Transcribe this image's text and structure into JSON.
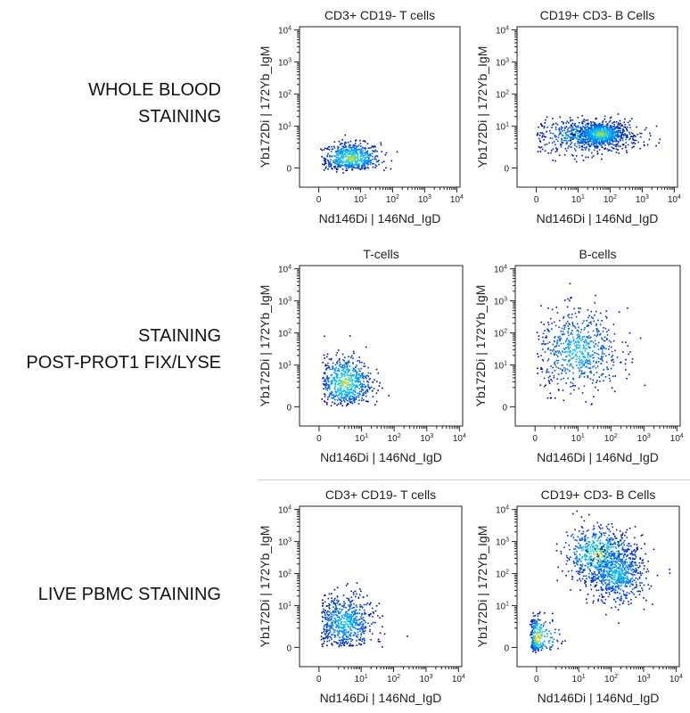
{
  "row_labels": [
    {
      "lines": [
        "WHOLE BLOOD",
        "STAINING"
      ]
    },
    {
      "lines": [
        "STAINING",
        "POST-PROT1 FIX/LYSE"
      ]
    },
    {
      "lines": [
        "LIVE PBMC STAINING"
      ]
    }
  ],
  "colors": {
    "density_low": "#00008b",
    "density_mid": "#00b4ff",
    "density_high": "#ffd000",
    "density_peak": "#e03000",
    "axis": "#222222",
    "divider": "#cfcfcf"
  },
  "chart_data": [
    {
      "type": "scatter",
      "style": "density",
      "title": "CD3+ CD19- T cells",
      "xlabel": "Nd146Di | 146Nd_IgD",
      "ylabel": "Yb172Di | 172Yb_IgM",
      "x_scale": "biexponential",
      "y_scale": "biexponential",
      "xlim": [
        -1,
        10000
      ],
      "ylim": [
        -1,
        10000
      ],
      "xticks": [
        "0",
        "10",
        "10",
        "10",
        "10"
      ],
      "xtick_exponents": [
        "",
        "1",
        "2",
        "3",
        "4"
      ],
      "yticks": [
        "0",
        "10",
        "10",
        "10",
        "10"
      ],
      "ytick_exponents": [
        "",
        "1",
        "2",
        "3",
        "4"
      ],
      "clusters": [
        {
          "x_center": 5,
          "x_spread": 1.0,
          "y_center": 2,
          "y_spread": 0.35,
          "density": "high"
        }
      ],
      "grid": false
    },
    {
      "type": "scatter",
      "style": "density",
      "title": "CD19+ CD3- B Cells",
      "xlabel": "Nd146Di | 146Nd_IgD",
      "ylabel": "Yb172Di | 172Yb_IgM",
      "x_scale": "biexponential",
      "y_scale": "biexponential",
      "xlim": [
        -1,
        10000
      ],
      "ylim": [
        -1,
        10000
      ],
      "xticks": [
        "0",
        "10",
        "10",
        "10",
        "10"
      ],
      "xtick_exponents": [
        "",
        "1",
        "2",
        "3",
        "4"
      ],
      "yticks": [
        "0",
        "10",
        "10",
        "10",
        "10"
      ],
      "ytick_exponents": [
        "",
        "1",
        "2",
        "3",
        "4"
      ],
      "clusters": [
        {
          "x_center": 20,
          "x_spread": 1.8,
          "y_center": 5,
          "y_spread": 0.6,
          "density": "mid"
        },
        {
          "x_center": 50,
          "x_spread": 0.8,
          "y_center": 6,
          "y_spread": 0.4,
          "density": "high"
        }
      ],
      "grid": false
    },
    {
      "type": "scatter",
      "style": "density",
      "title": "T-cells",
      "xlabel": "Nd146Di | 146Nd_IgD",
      "ylabel": "Yb172Di | 172Yb_IgM",
      "x_scale": "biexponential",
      "y_scale": "biexponential",
      "xlim": [
        -1,
        10000
      ],
      "ylim": [
        -1,
        10000
      ],
      "xticks": [
        "0",
        "10",
        "10",
        "10",
        "10"
      ],
      "xtick_exponents": [
        "",
        "1",
        "2",
        "3",
        "4"
      ],
      "yticks": [
        "0",
        "10",
        "10",
        "10",
        "10"
      ],
      "ytick_exponents": [
        "",
        "1",
        "2",
        "3",
        "4"
      ],
      "clusters": [
        {
          "x_center": 3,
          "x_spread": 0.9,
          "y_center": 3,
          "y_spread": 0.9,
          "density": "high"
        }
      ],
      "grid": false
    },
    {
      "type": "scatter",
      "style": "density",
      "title": "B-cells",
      "xlabel": "Nd146Di | 146Nd_IgD",
      "ylabel": "Yb172Di | 172Yb_IgM",
      "x_scale": "biexponential",
      "y_scale": "biexponential",
      "xlim": [
        -1,
        10000
      ],
      "ylim": [
        -1,
        10000
      ],
      "xticks": [
        "0",
        "10",
        "10",
        "10",
        "10"
      ],
      "xtick_exponents": [
        "",
        "1",
        "2",
        "3",
        "4"
      ],
      "yticks": [
        "0",
        "10",
        "10",
        "10",
        "10"
      ],
      "ytick_exponents": [
        "",
        "1",
        "2",
        "3",
        "4"
      ],
      "clusters": [
        {
          "x_center": 10,
          "x_spread": 1.4,
          "y_center": 30,
          "y_spread": 1.4,
          "density": "mid"
        }
      ],
      "grid": false
    },
    {
      "type": "scatter",
      "style": "density",
      "title": "CD3+ CD19- T cells",
      "xlabel": "Nd146Di | 146Nd_IgD",
      "ylabel": "Yb172Di | 172Yb_IgM",
      "x_scale": "biexponential",
      "y_scale": "biexponential",
      "xlim": [
        -1,
        10000
      ],
      "ylim": [
        -1,
        10000
      ],
      "xticks": [
        "0",
        "10",
        "10",
        "10",
        "10"
      ],
      "xtick_exponents": [
        "",
        "1",
        "2",
        "3",
        "4"
      ],
      "yticks": [
        "0",
        "10",
        "10",
        "10",
        "10"
      ],
      "ytick_exponents": [
        "",
        "1",
        "2",
        "3",
        "4"
      ],
      "clusters": [
        {
          "x_center": 3,
          "x_spread": 1.0,
          "y_center": 3,
          "y_spread": 1.0,
          "density": "mid"
        }
      ],
      "grid": false
    },
    {
      "type": "scatter",
      "style": "density",
      "title": "CD19+ CD3- B Cells",
      "xlabel": "Nd146Di | 146Nd_IgD",
      "ylabel": "Yb172Di | 172Yb_IgM",
      "x_scale": "biexponential",
      "y_scale": "biexponential",
      "xlim": [
        -1,
        10000
      ],
      "ylim": [
        -1,
        10000
      ],
      "xticks": [
        "0",
        "10",
        "10",
        "10",
        "10"
      ],
      "xtick_exponents": [
        "",
        "1",
        "2",
        "3",
        "4"
      ],
      "yticks": [
        "0",
        "10",
        "10",
        "10",
        "10"
      ],
      "ytick_exponents": [
        "",
        "1",
        "2",
        "3",
        "4"
      ],
      "clusters": [
        {
          "x_center": 40,
          "x_spread": 1.2,
          "y_center": 400,
          "y_spread": 1.0,
          "density": "high"
        },
        {
          "x_center": 150,
          "x_spread": 1.0,
          "y_center": 100,
          "y_spread": 1.0,
          "density": "mid"
        },
        {
          "x_center": 1,
          "x_spread": 0.6,
          "y_center": 2,
          "y_spread": 0.5,
          "density": "peak"
        }
      ],
      "grid": false
    }
  ]
}
